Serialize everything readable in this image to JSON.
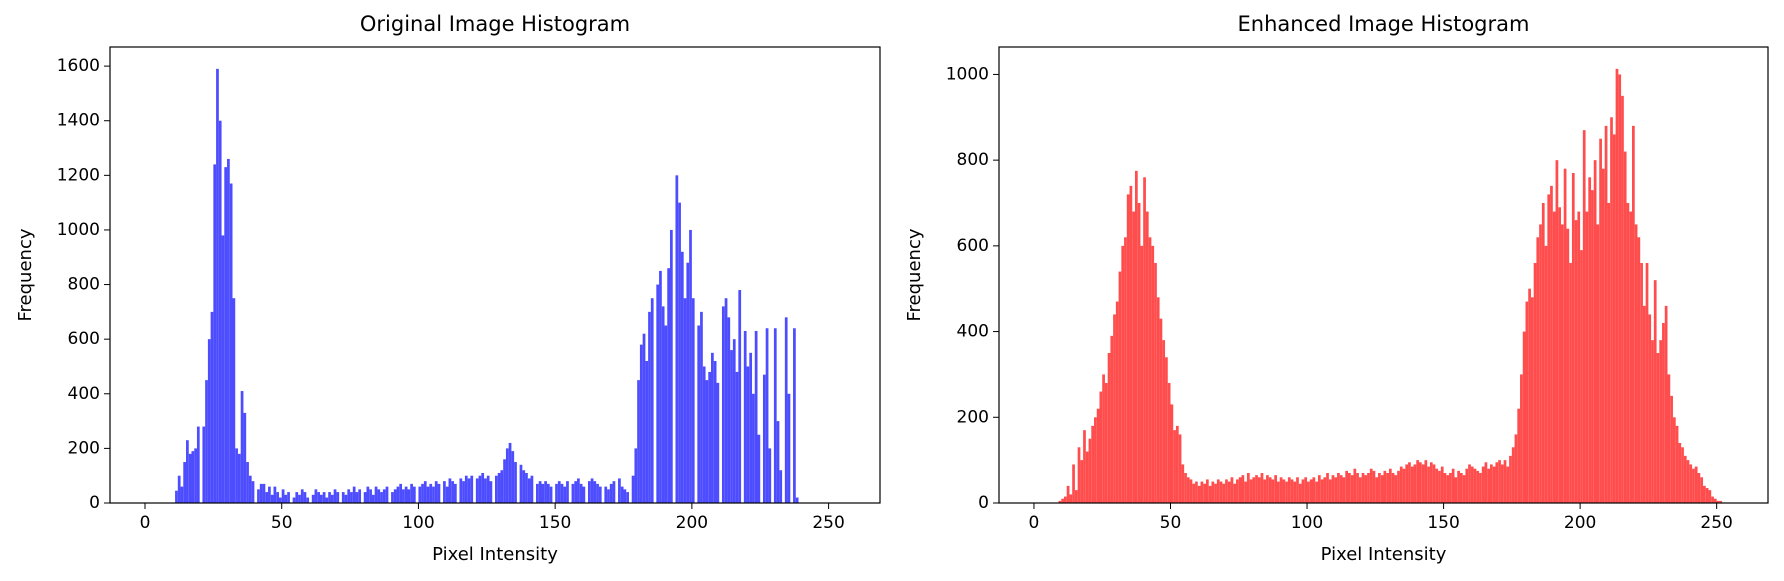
{
  "chart_data": [
    {
      "type": "histogram",
      "title": "Original Image Histogram",
      "x_label": "Pixel Intensity",
      "y_label": "Frequency",
      "color": "#4d4dff",
      "bins": [
        0,
        1,
        2,
        3,
        4,
        5,
        6,
        7,
        8,
        9,
        10,
        11,
        12,
        13,
        14,
        15,
        16,
        17,
        18,
        19,
        20,
        21,
        22,
        23,
        24,
        25,
        26,
        27,
        28,
        29,
        30,
        31,
        32,
        33,
        34,
        35,
        36,
        37,
        38,
        39,
        40,
        41,
        42,
        43,
        44,
        45,
        46,
        47,
        48,
        49,
        50,
        51,
        52,
        53,
        54,
        55,
        56,
        57,
        58,
        59,
        60,
        61,
        62,
        63,
        64,
        65,
        66,
        67,
        68,
        69,
        70,
        71,
        72,
        73,
        74,
        75,
        76,
        77,
        78,
        79,
        80,
        81,
        82,
        83,
        84,
        85,
        86,
        87,
        88,
        89,
        90,
        91,
        92,
        93,
        94,
        95,
        96,
        97,
        98,
        99,
        100,
        101,
        102,
        103,
        104,
        105,
        106,
        107,
        108,
        109,
        110,
        111,
        112,
        113,
        114,
        115,
        116,
        117,
        118,
        119,
        120,
        121,
        122,
        123,
        124,
        125,
        126,
        127,
        128,
        129,
        130,
        131,
        132,
        133,
        134,
        135,
        136,
        137,
        138,
        139,
        140,
        141,
        142,
        143,
        144,
        145,
        146,
        147,
        148,
        149,
        150,
        151,
        152,
        153,
        154,
        155,
        156,
        157,
        158,
        159,
        160,
        161,
        162,
        163,
        164,
        165,
        166,
        167,
        168,
        169,
        170,
        171,
        172,
        173,
        174,
        175,
        176,
        177,
        178,
        179,
        180,
        181,
        182,
        183,
        184,
        185,
        186,
        187,
        188,
        189,
        190,
        191,
        192,
        193,
        194,
        195,
        196,
        197,
        198,
        199,
        200,
        201,
        202,
        203,
        204,
        205,
        206,
        207,
        208,
        209,
        210,
        211,
        212,
        213,
        214,
        215,
        216,
        217,
        218,
        219,
        220,
        221,
        222,
        223,
        224,
        225,
        226,
        227,
        228,
        229,
        230,
        231,
        232,
        233,
        234,
        235,
        236,
        237,
        238,
        239,
        240,
        241,
        242,
        243,
        244,
        245,
        246,
        247,
        248,
        249,
        250,
        251,
        252,
        253,
        254,
        255,
        256
      ],
      "counts": [
        0,
        0,
        0,
        0,
        0,
        0,
        0,
        0,
        0,
        0,
        0,
        45,
        100,
        60,
        150,
        230,
        180,
        190,
        200,
        280,
        0,
        280,
        450,
        600,
        700,
        1240,
        1590,
        1400,
        980,
        1230,
        1260,
        1170,
        750,
        200,
        180,
        410,
        330,
        150,
        100,
        80,
        0,
        50,
        70,
        70,
        40,
        60,
        30,
        60,
        40,
        20,
        50,
        30,
        40,
        0,
        20,
        40,
        30,
        50,
        40,
        20,
        0,
        30,
        50,
        40,
        30,
        40,
        20,
        40,
        30,
        50,
        40,
        0,
        40,
        30,
        50,
        40,
        60,
        40,
        50,
        0,
        40,
        60,
        50,
        30,
        60,
        50,
        40,
        50,
        60,
        0,
        40,
        50,
        60,
        70,
        50,
        60,
        50,
        70,
        60,
        0,
        60,
        70,
        80,
        60,
        70,
        60,
        80,
        70,
        0,
        80,
        60,
        90,
        80,
        70,
        0,
        90,
        80,
        100,
        90,
        100,
        0,
        90,
        100,
        110,
        90,
        100,
        80,
        0,
        100,
        110,
        120,
        160,
        200,
        220,
        190,
        150,
        0,
        140,
        120,
        110,
        90,
        100,
        0,
        70,
        80,
        70,
        80,
        70,
        60,
        0,
        70,
        80,
        70,
        60,
        80,
        0,
        70,
        80,
        90,
        70,
        60,
        0,
        80,
        90,
        80,
        70,
        60,
        0,
        60,
        50,
        70,
        80,
        0,
        90,
        60,
        50,
        40,
        0,
        100,
        200,
        450,
        580,
        620,
        520,
        700,
        750,
        0,
        800,
        850,
        720,
        650,
        860,
        1000,
        0,
        1200,
        1100,
        920,
        750,
        880,
        1000,
        750,
        0,
        650,
        700,
        500,
        450,
        480,
        550,
        520,
        440,
        0,
        720,
        750,
        680,
        560,
        600,
        480,
        780,
        0,
        630,
        500,
        550,
        400,
        630,
        250,
        0,
        470,
        640,
        200,
        0,
        640,
        300,
        120,
        0,
        680,
        400,
        0,
        640,
        20,
        0,
        0,
        0,
        0,
        0,
        0,
        0,
        0,
        0,
        0,
        0,
        0,
        0,
        0,
        0,
        0,
        0
      ],
      "xlim": [
        -12.8,
        268.8
      ],
      "ylim": [
        0,
        1670
      ],
      "xticks": [
        0,
        50,
        100,
        150,
        200,
        250
      ],
      "yticks": [
        0,
        200,
        400,
        600,
        800,
        1000,
        1200,
        1400,
        1600
      ]
    },
    {
      "type": "histogram",
      "title": "Enhanced Image Histogram",
      "x_label": "Pixel Intensity",
      "y_label": "Frequency",
      "color": "#ff4d4d",
      "bins": [
        0,
        1,
        2,
        3,
        4,
        5,
        6,
        7,
        8,
        9,
        10,
        11,
        12,
        13,
        14,
        15,
        16,
        17,
        18,
        19,
        20,
        21,
        22,
        23,
        24,
        25,
        26,
        27,
        28,
        29,
        30,
        31,
        32,
        33,
        34,
        35,
        36,
        37,
        38,
        39,
        40,
        41,
        42,
        43,
        44,
        45,
        46,
        47,
        48,
        49,
        50,
        51,
        52,
        53,
        54,
        55,
        56,
        57,
        58,
        59,
        60,
        61,
        62,
        63,
        64,
        65,
        66,
        67,
        68,
        69,
        70,
        71,
        72,
        73,
        74,
        75,
        76,
        77,
        78,
        79,
        80,
        81,
        82,
        83,
        84,
        85,
        86,
        87,
        88,
        89,
        90,
        91,
        92,
        93,
        94,
        95,
        96,
        97,
        98,
        99,
        100,
        101,
        102,
        103,
        104,
        105,
        106,
        107,
        108,
        109,
        110,
        111,
        112,
        113,
        114,
        115,
        116,
        117,
        118,
        119,
        120,
        121,
        122,
        123,
        124,
        125,
        126,
        127,
        128,
        129,
        130,
        131,
        132,
        133,
        134,
        135,
        136,
        137,
        138,
        139,
        140,
        141,
        142,
        143,
        144,
        145,
        146,
        147,
        148,
        149,
        150,
        151,
        152,
        153,
        154,
        155,
        156,
        157,
        158,
        159,
        160,
        161,
        162,
        163,
        164,
        165,
        166,
        167,
        168,
        169,
        170,
        171,
        172,
        173,
        174,
        175,
        176,
        177,
        178,
        179,
        180,
        181,
        182,
        183,
        184,
        185,
        186,
        187,
        188,
        189,
        190,
        191,
        192,
        193,
        194,
        195,
        196,
        197,
        198,
        199,
        200,
        201,
        202,
        203,
        204,
        205,
        206,
        207,
        208,
        209,
        210,
        211,
        212,
        213,
        214,
        215,
        216,
        217,
        218,
        219,
        220,
        221,
        222,
        223,
        224,
        225,
        226,
        227,
        228,
        229,
        230,
        231,
        232,
        233,
        234,
        235,
        236,
        237,
        238,
        239,
        240,
        241,
        242,
        243,
        244,
        245,
        246,
        247,
        248,
        249,
        250,
        251,
        252,
        253,
        254,
        255,
        256
      ],
      "counts": [
        0,
        0,
        0,
        0,
        0,
        0,
        0,
        0,
        0,
        5,
        10,
        15,
        40,
        20,
        90,
        30,
        130,
        100,
        170,
        120,
        150,
        180,
        200,
        220,
        260,
        300,
        280,
        350,
        390,
        440,
        470,
        540,
        600,
        620,
        720,
        740,
        680,
        775,
        700,
        600,
        760,
        680,
        620,
        600,
        560,
        480,
        430,
        380,
        340,
        280,
        230,
        170,
        180,
        160,
        90,
        70,
        60,
        55,
        45,
        50,
        40,
        50,
        45,
        55,
        40,
        50,
        45,
        55,
        50,
        45,
        55,
        50,
        60,
        45,
        55,
        60,
        65,
        50,
        70,
        55,
        60,
        65,
        60,
        70,
        55,
        65,
        60,
        55,
        65,
        50,
        60,
        55,
        50,
        60,
        55,
        50,
        60,
        45,
        55,
        60,
        50,
        55,
        60,
        50,
        65,
        55,
        60,
        70,
        55,
        65,
        60,
        70,
        65,
        60,
        75,
        70,
        65,
        80,
        70,
        60,
        70,
        65,
        70,
        80,
        75,
        60,
        70,
        65,
        75,
        70,
        80,
        70,
        65,
        75,
        85,
        80,
        90,
        95,
        85,
        90,
        100,
        95,
        90,
        100,
        85,
        95,
        90,
        80,
        75,
        85,
        70,
        65,
        70,
        80,
        60,
        75,
        70,
        65,
        80,
        90,
        85,
        80,
        75,
        70,
        85,
        95,
        80,
        90,
        85,
        95,
        100,
        90,
        100,
        85,
        110,
        130,
        160,
        220,
        300,
        400,
        470,
        500,
        480,
        560,
        620,
        650,
        700,
        600,
        720,
        740,
        680,
        800,
        690,
        650,
        780,
        640,
        560,
        770,
        660,
        680,
        590,
        870,
        680,
        760,
        730,
        800,
        650,
        850,
        780,
        880,
        700,
        900,
        860,
        1013,
        1000,
        950,
        820,
        700,
        680,
        880,
        650,
        620,
        560,
        460,
        560,
        440,
        380,
        520,
        350,
        380,
        420,
        460,
        300,
        250,
        200,
        180,
        140,
        130,
        110,
        100,
        90,
        80,
        85,
        70,
        60,
        40,
        35,
        30,
        15,
        10,
        5,
        5,
        0,
        0,
        0,
        0
      ],
      "xlim": [
        -12.8,
        268.8
      ],
      "ylim": [
        0,
        1064
      ],
      "xticks": [
        0,
        50,
        100,
        150,
        200,
        250
      ],
      "yticks": [
        0,
        200,
        400,
        600,
        800,
        1000
      ]
    }
  ]
}
